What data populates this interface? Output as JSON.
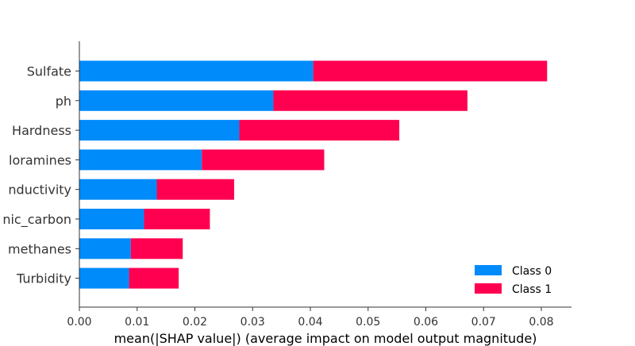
{
  "chart_data": {
    "type": "bar",
    "orientation": "horizontal",
    "stacked": true,
    "categories": [
      "Sulfate",
      "ph",
      "Hardness",
      "Chloramines",
      "Conductivity",
      "Organic_carbon",
      "Trihalomethanes",
      "Turbidity"
    ],
    "visible_category_text": [
      "Sulfate",
      "ph",
      "Hardness",
      "loramines",
      "nductivity",
      "nic_carbon",
      "methanes",
      "Turbidity"
    ],
    "series": [
      {
        "name": "Class 0",
        "color": "#008bfb",
        "values": [
          0.0405,
          0.0336,
          0.0277,
          0.0212,
          0.0134,
          0.0112,
          0.0089,
          0.0086
        ]
      },
      {
        "name": "Class 1",
        "color": "#ff0051",
        "values": [
          0.0405,
          0.0336,
          0.0277,
          0.0212,
          0.0134,
          0.0114,
          0.009,
          0.0086
        ]
      }
    ],
    "xlabel": "mean(|SHAP value|) (average impact on model output magnitude)",
    "ylabel": "",
    "xlim": [
      0,
      0.085
    ],
    "xticks": [
      "0.00",
      "0.01",
      "0.02",
      "0.03",
      "0.04",
      "0.05",
      "0.06",
      "0.07",
      "0.08"
    ],
    "grid": false,
    "legend_position": "bottom-right"
  }
}
